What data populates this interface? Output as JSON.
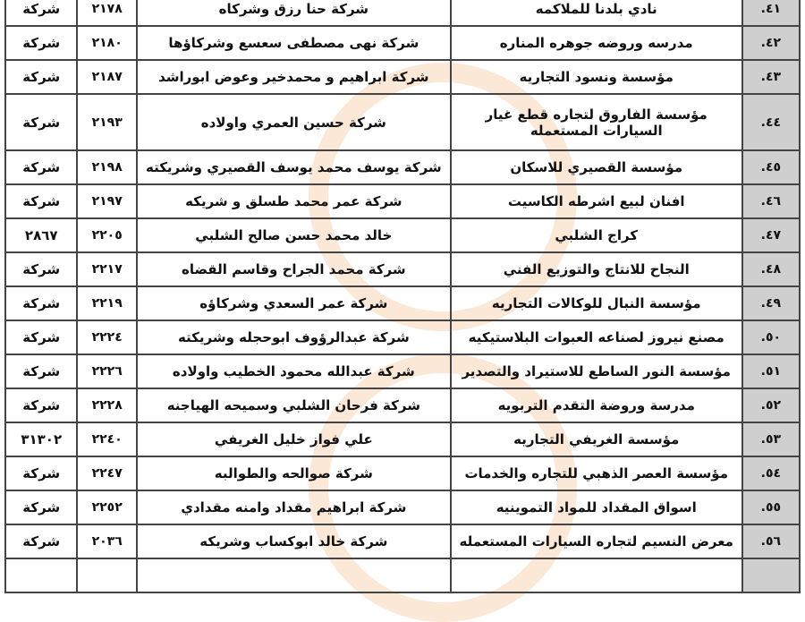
{
  "rows": [
    {
      "num": "٤١.",
      "establishment": "نادي بلدنا للملاكمه",
      "owner": "شركة حنا رزق وشركاه",
      "code": "٢١٧٨",
      "type": "شركة"
    },
    {
      "num": "٤٢.",
      "establishment": "مدرسه وروضه جوهره المناره",
      "owner": "شركة نهى مصطفى سعسع وشركاؤها",
      "code": "٢١٨٠",
      "type": "شركة"
    },
    {
      "num": "٤٣.",
      "establishment": "مؤسسة ونسود التجاريه",
      "owner": "شركة ابراهيم و محمدخير وعوض ابوراشد",
      "code": "٢١٨٧",
      "type": "شركة"
    },
    {
      "num": "٤٤.",
      "establishment": "مؤسسة الفاروق لتجاره قطع غيار السيارات المستعمله",
      "owner": "شركة حسين العمري واولاده",
      "code": "٢١٩٣",
      "type": "شركة"
    },
    {
      "num": "٤٥.",
      "establishment": "مؤسسة القصيري للاسكان",
      "owner": "شركة يوسف محمد يوسف القصيري وشريكته",
      "code": "٢١٩٨",
      "type": "شركة"
    },
    {
      "num": "٤٦.",
      "establishment": "افنان لبيع اشرطه الكاسيت",
      "owner": "شركة عمر محمد طسلق و شريكه",
      "code": "٢١٩٧",
      "type": "شركة"
    },
    {
      "num": "٤٧.",
      "establishment": "كراج الشلبي",
      "owner": "خالد محمد حسن صالح الشلبي",
      "code": "٢٢٠٥",
      "type": "٢٨٦٧"
    },
    {
      "num": "٤٨.",
      "establishment": "النجاح للانتاج والتوزيع الفني",
      "owner": "شركة محمد الجراح وقاسم القضاه",
      "code": "٢٢١٧",
      "type": "شركة"
    },
    {
      "num": "٤٩.",
      "establishment": "مؤسسة النبال للوكالات التجاريه",
      "owner": "شركة عمر السعدي وشركاؤه",
      "code": "٢٢١٩",
      "type": "شركة"
    },
    {
      "num": "٥٠.",
      "establishment": "مصنع نيروز لصناعه العبوات البلاستيكيه",
      "owner": "شركة عبدالرؤوف ابوحجله وشريكته",
      "code": "٢٢٢٤",
      "type": "شركة"
    },
    {
      "num": "٥١.",
      "establishment": "مؤسسة النور الساطع للاستيراد والتصدير",
      "owner": "شركة عبدالله محمود الخطيب واولاده",
      "code": "٢٢٢٦",
      "type": "شركة"
    },
    {
      "num": "٥٢.",
      "establishment": "مدرسة وروضة التقدم التربويه",
      "owner": "شركة فرحان الشلبي وسميحه الهياجنه",
      "code": "٢٢٢٨",
      "type": "شركة"
    },
    {
      "num": "٥٣.",
      "establishment": "مؤسسة الغريفي التجاريه",
      "owner": "علي فواز خليل الغريفي",
      "code": "٢٢٤٠",
      "type": "٣١٣٠٢"
    },
    {
      "num": "٥٤.",
      "establishment": "مؤسسة العصر الذهبي للتجاره والخدمات",
      "owner": "شركة صوالحه والطوالبه",
      "code": "٢٢٤٧",
      "type": "شركة"
    },
    {
      "num": "٥٥.",
      "establishment": "اسواق المقداد للمواد التموينيه",
      "owner": "شركة ابراهيم مقداد وامنه مقدادي",
      "code": "٢٢٥٢",
      "type": "شركة"
    },
    {
      "num": "٥٦.",
      "establishment": "معرض النسيم لتجاره السيارات المستعمله",
      "owner": "شركة خالد ابوكساب وشريكه",
      "code": "٢٠٣٦",
      "type": "شركة"
    }
  ],
  "colors": {
    "number_column_bg": "#cfcfcf",
    "border": "#444444"
  }
}
